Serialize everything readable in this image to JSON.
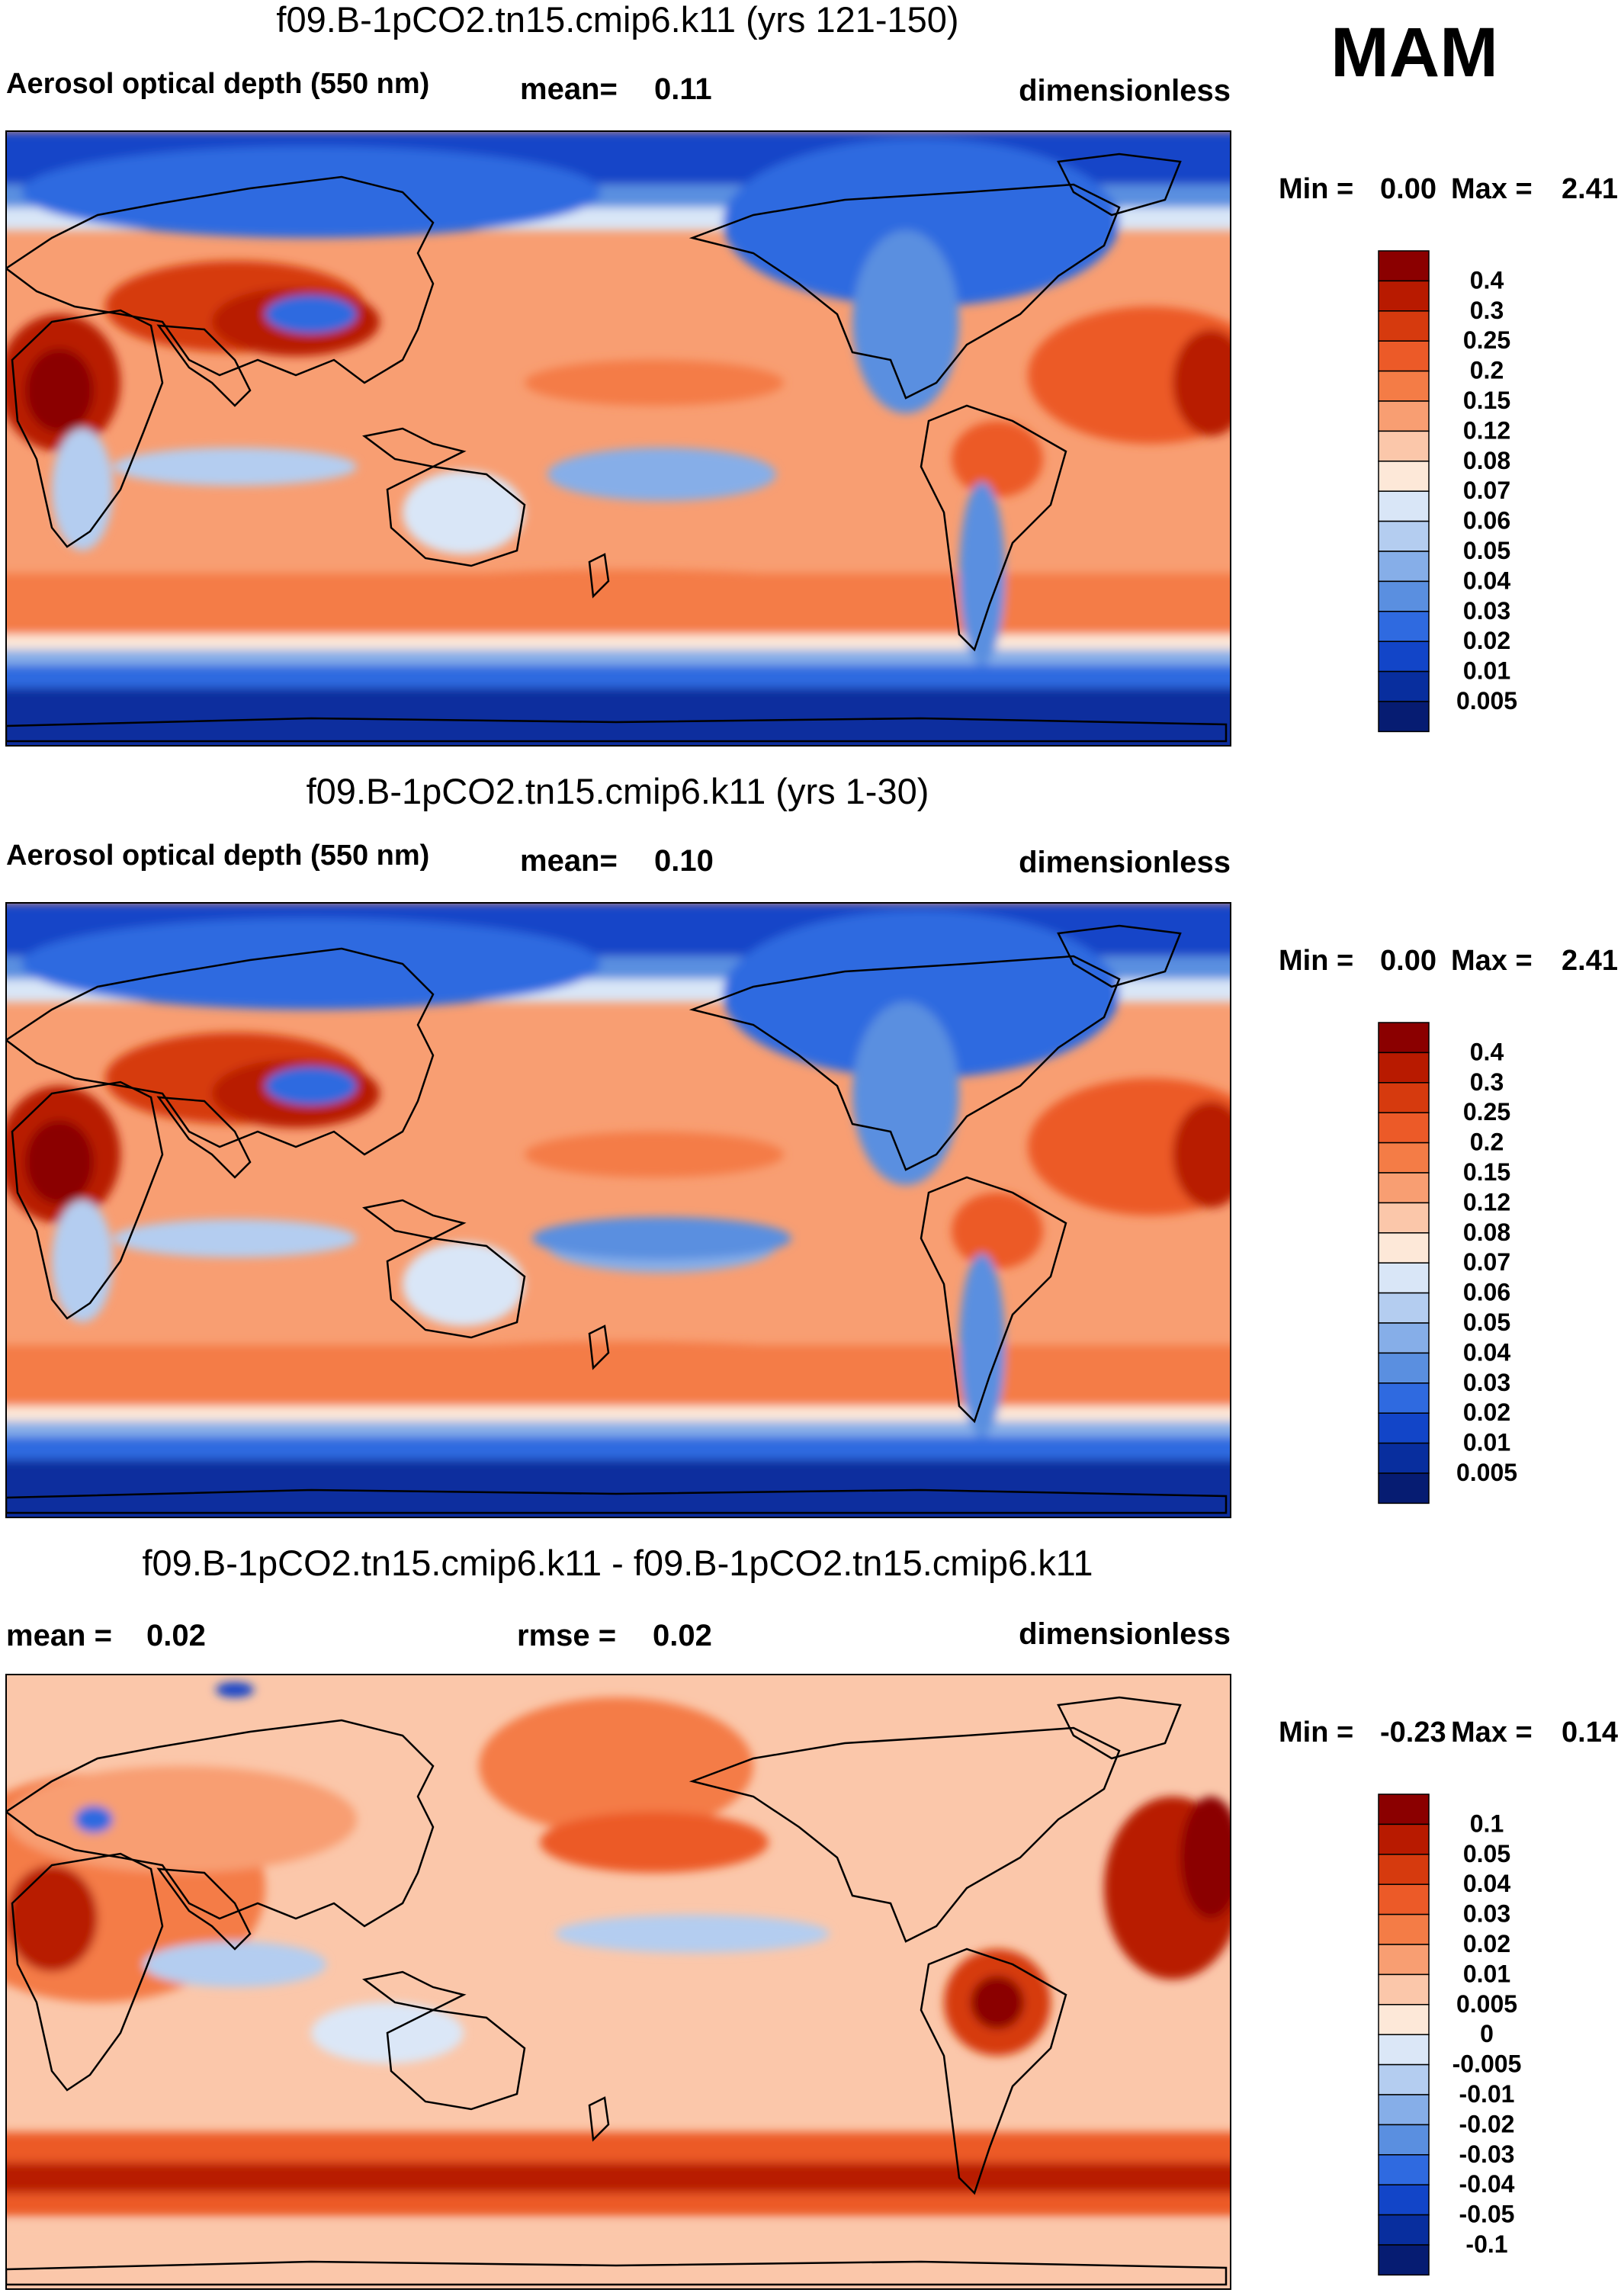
{
  "season": "MAM",
  "colors": {
    "ocean_background": "#fbd0b9",
    "coastline": "#000000",
    "frame": "#000000"
  },
  "chart_data": [
    {
      "type": "heatmap",
      "title": "f09.B-1pCO2.tn15.cmip6.k11 (yrs 121-150)",
      "left_label": "Aerosol optical depth (550 nm)",
      "center_label": "mean=",
      "center_value": "0.11",
      "right_label": "dimensionless",
      "stats": {
        "min_label": "Min =",
        "min": "0.00",
        "max_label": "Max =",
        "max": "2.41"
      },
      "colorbar": {
        "labels": [
          "0.4",
          "0.3",
          "0.25",
          "0.2",
          "0.15",
          "0.12",
          "0.08",
          "0.07",
          "0.06",
          "0.05",
          "0.04",
          "0.03",
          "0.02",
          "0.01",
          "0.005"
        ],
        "colors": [
          "#8b0000",
          "#b81a00",
          "#d63a0e",
          "#ec5a28",
          "#f47c46",
          "#f89e72",
          "#fbc7aa",
          "#fde8d8",
          "#d9e6f7",
          "#b4cdf0",
          "#86aee8",
          "#5a8fe0",
          "#2f6ae0",
          "#1245c8",
          "#082e9e",
          "#061c72"
        ]
      }
    },
    {
      "type": "heatmap",
      "title": "f09.B-1pCO2.tn15.cmip6.k11 (yrs 1-30)",
      "left_label": "Aerosol optical depth (550 nm)",
      "center_label": "mean=",
      "center_value": "0.10",
      "right_label": "dimensionless",
      "stats": {
        "min_label": "Min =",
        "min": "0.00",
        "max_label": "Max =",
        "max": "2.41"
      },
      "colorbar": {
        "labels": [
          "0.4",
          "0.3",
          "0.25",
          "0.2",
          "0.15",
          "0.12",
          "0.08",
          "0.07",
          "0.06",
          "0.05",
          "0.04",
          "0.03",
          "0.02",
          "0.01",
          "0.005"
        ],
        "colors": [
          "#8b0000",
          "#b81a00",
          "#d63a0e",
          "#ec5a28",
          "#f47c46",
          "#f89e72",
          "#fbc7aa",
          "#fde8d8",
          "#d9e6f7",
          "#b4cdf0",
          "#86aee8",
          "#5a8fe0",
          "#2f6ae0",
          "#1245c8",
          "#082e9e",
          "#061c72"
        ]
      }
    },
    {
      "type": "heatmap",
      "title": "f09.B-1pCO2.tn15.cmip6.k11 - f09.B-1pCO2.tn15.cmip6.k11",
      "left_label": "mean =",
      "left_value": "0.02",
      "center_label": "rmse =",
      "center_value": "0.02",
      "right_label": "dimensionless",
      "stats": {
        "min_label": "Min =",
        "min": "-0.23",
        "max_label": "Max =",
        "max": "0.14"
      },
      "colorbar": {
        "labels": [
          "0.1",
          "0.05",
          "0.04",
          "0.03",
          "0.02",
          "0.01",
          "0.005",
          "0",
          "-0.005",
          "-0.01",
          "-0.02",
          "-0.03",
          "-0.04",
          "-0.05",
          "-0.1"
        ],
        "colors": [
          "#8b0000",
          "#b81a00",
          "#d63a0e",
          "#ec5a28",
          "#f47c46",
          "#f89e72",
          "#fbc7aa",
          "#fde8d8",
          "#dbe7f7",
          "#b4cdf0",
          "#86aee8",
          "#5a8fe0",
          "#2f6ae0",
          "#1245c8",
          "#082e9e",
          "#061c72"
        ]
      }
    }
  ]
}
